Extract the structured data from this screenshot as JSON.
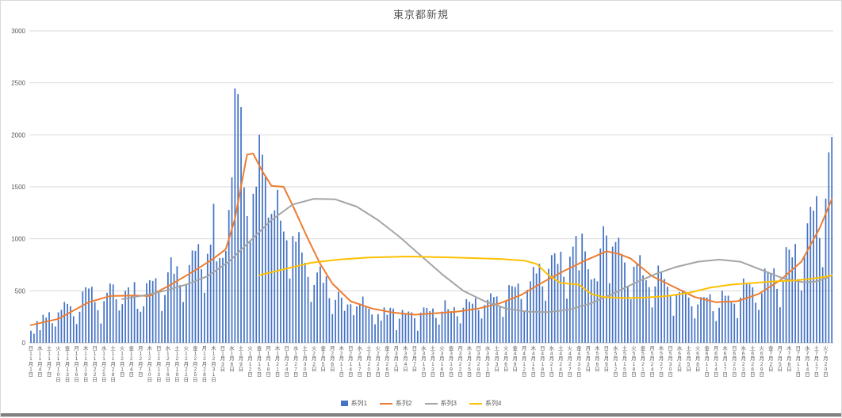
{
  "colors": {
    "series1": "#4472C4",
    "series2": "#ED7D31",
    "series3": "#A5A5A5",
    "series4": "#FFC000",
    "gridline": "#D9D9D9",
    "axis_line": "#BFBFBF",
    "axis_text": "#595959",
    "title_text": "#595959",
    "border": "#D9D9D9"
  },
  "chart_data": {
    "type": "combo",
    "title": "東京都新規",
    "legend_position": "bottom",
    "grid": true,
    "y_axis": {
      "min": 0,
      "max": 3000,
      "tick_step": 500
    },
    "x_axis": {
      "start_date": "2020-11-01",
      "end_date": "2021-07-22",
      "tick_interval_days": 3,
      "weekday_chars": [
        "日",
        "月",
        "火",
        "水",
        "木",
        "金",
        "土"
      ],
      "month_suffix": "月",
      "day_suffix": "日"
    },
    "series": [
      {
        "name": "系列1",
        "type": "bar",
        "color": "#4472C4",
        "values": [
          116,
          87,
          209,
          122,
          269,
          242,
          294,
          189,
          157,
          293,
          317,
          393,
          374,
          352,
          255,
          180,
          298,
          493,
          534,
          522,
          539,
          391,
          314,
          186,
          401,
          481,
          570,
          561,
          418,
          311,
          372,
          500,
          533,
          449,
          584,
          327,
          299,
          352,
          572,
          602,
          595,
          621,
          480,
          305,
          460,
          678,
          822,
          664,
          736,
          556,
          392,
          563,
          748,
          888,
          884,
          949,
          708,
          481,
          856,
          944,
          1337,
          783,
          814,
          816,
          884,
          1278,
          1591,
          2447,
          2392,
          2268,
          1494,
          1219,
          970,
          1433,
          1502,
          2001,
          1809,
          1592,
          1204,
          1240,
          1274,
          1471,
          1175,
          1070,
          986,
          618,
          1026,
          973,
          1064,
          868,
          769,
          633,
          393,
          556,
          676,
          734,
          577,
          639,
          429,
          276,
          412,
          491,
          434,
          307,
          369,
          371,
          266,
          350,
          378,
          445,
          353,
          327,
          272,
          178,
          275,
          213,
          340,
          270,
          337,
          329,
          121,
          232,
          316,
          279,
          301,
          293,
          237,
          116,
          290,
          340,
          335,
          304,
          330,
          239,
          175,
          300,
          409,
          323,
          303,
          342,
          256,
          187,
          337,
          420,
          394,
          376,
          430,
          313,
          234,
          364,
          414,
          475,
          440,
          446,
          355,
          249,
          399,
          555,
          545,
          537,
          570,
          421,
          306,
          510,
          591,
          729,
          667,
          759,
          543,
          405,
          711,
          843,
          861,
          759,
          876,
          635,
          425,
          828,
          925,
          1027,
          698,
          1050,
          879,
          708,
          609,
          621,
          591,
          907,
          1121,
          1032,
          573,
          925,
          969,
          1010,
          854,
          772,
          542,
          419,
          732,
          766,
          843,
          649,
          602,
          535,
          340,
          542,
          743,
          684,
          614,
          539,
          448,
          260,
          471,
          487,
          508,
          472,
          436,
          351,
          235,
          369,
          440,
          439,
          435,
          467,
          304,
          209,
          337,
          501,
          452,
          453,
          388,
          376,
          236,
          435,
          619,
          570,
          562,
          534,
          386,
          317,
          476,
          714,
          673,
          660,
          716,
          518,
          342,
          593,
          920,
          896,
          822,
          950,
          614,
          502,
          830,
          1149,
          1308,
          1271,
          1410,
          1008,
          727,
          1387,
          1832,
          1979
        ]
      },
      {
        "name": "系列2",
        "type": "line",
        "color": "#ED7D31",
        "points": [
          [
            "2020-11-01",
            170
          ],
          [
            "2020-11-10",
            230
          ],
          [
            "2020-11-20",
            390
          ],
          [
            "2020-11-27",
            450
          ],
          [
            "2020-12-05",
            455
          ],
          [
            "2020-12-10",
            450
          ],
          [
            "2020-12-17",
            560
          ],
          [
            "2020-12-24",
            680
          ],
          [
            "2020-12-31",
            810
          ],
          [
            "2021-01-04",
            900
          ],
          [
            "2021-01-07",
            1190
          ],
          [
            "2021-01-11",
            1810
          ],
          [
            "2021-01-13",
            1820
          ],
          [
            "2021-01-16",
            1650
          ],
          [
            "2021-01-19",
            1510
          ],
          [
            "2021-01-23",
            1500
          ],
          [
            "2021-01-26",
            1320
          ],
          [
            "2021-01-31",
            1000
          ],
          [
            "2021-02-04",
            760
          ],
          [
            "2021-02-08",
            570
          ],
          [
            "2021-02-14",
            400
          ],
          [
            "2021-02-21",
            330
          ],
          [
            "2021-02-28",
            290
          ],
          [
            "2021-03-07",
            270
          ],
          [
            "2021-03-14",
            285
          ],
          [
            "2021-03-21",
            300
          ],
          [
            "2021-03-28",
            330
          ],
          [
            "2021-04-04",
            380
          ],
          [
            "2021-04-11",
            460
          ],
          [
            "2021-04-18",
            580
          ],
          [
            "2021-04-25",
            690
          ],
          [
            "2021-05-02",
            790
          ],
          [
            "2021-05-09",
            880
          ],
          [
            "2021-05-13",
            855
          ],
          [
            "2021-05-17",
            810
          ],
          [
            "2021-05-24",
            640
          ],
          [
            "2021-05-31",
            540
          ],
          [
            "2021-06-07",
            440
          ],
          [
            "2021-06-14",
            390
          ],
          [
            "2021-06-21",
            400
          ],
          [
            "2021-06-28",
            470
          ],
          [
            "2021-07-05",
            600
          ],
          [
            "2021-07-12",
            780
          ],
          [
            "2021-07-18",
            1100
          ],
          [
            "2021-07-22",
            1380
          ]
        ]
      },
      {
        "name": "系列3",
        "type": "line",
        "color": "#A5A5A5",
        "points": [
          [
            "2020-12-01",
            420
          ],
          [
            "2020-12-08",
            455
          ],
          [
            "2020-12-15",
            500
          ],
          [
            "2020-12-22",
            560
          ],
          [
            "2020-12-29",
            640
          ],
          [
            "2021-01-05",
            780
          ],
          [
            "2021-01-12",
            980
          ],
          [
            "2021-01-19",
            1180
          ],
          [
            "2021-01-26",
            1330
          ],
          [
            "2021-02-02",
            1385
          ],
          [
            "2021-02-09",
            1380
          ],
          [
            "2021-02-16",
            1310
          ],
          [
            "2021-02-23",
            1180
          ],
          [
            "2021-03-02",
            1020
          ],
          [
            "2021-03-09",
            840
          ],
          [
            "2021-03-16",
            660
          ],
          [
            "2021-03-23",
            500
          ],
          [
            "2021-03-30",
            400
          ],
          [
            "2021-04-06",
            330
          ],
          [
            "2021-04-13",
            300
          ],
          [
            "2021-04-20",
            295
          ],
          [
            "2021-04-27",
            320
          ],
          [
            "2021-05-04",
            380
          ],
          [
            "2021-05-11",
            470
          ],
          [
            "2021-05-18",
            570
          ],
          [
            "2021-05-25",
            660
          ],
          [
            "2021-06-01",
            730
          ],
          [
            "2021-06-08",
            780
          ],
          [
            "2021-06-15",
            800
          ],
          [
            "2021-06-22",
            780
          ],
          [
            "2021-06-29",
            700
          ],
          [
            "2021-07-06",
            620
          ],
          [
            "2021-07-13",
            580
          ],
          [
            "2021-07-17",
            590
          ],
          [
            "2021-07-20",
            620
          ],
          [
            "2021-07-22",
            650
          ]
        ]
      },
      {
        "name": "系列4",
        "type": "line",
        "color": "#FFC000",
        "points": [
          [
            "2021-01-15",
            650
          ],
          [
            "2021-01-22",
            700
          ],
          [
            "2021-02-01",
            770
          ],
          [
            "2021-02-10",
            800
          ],
          [
            "2021-02-20",
            820
          ],
          [
            "2021-03-05",
            830
          ],
          [
            "2021-03-20",
            820
          ],
          [
            "2021-04-05",
            805
          ],
          [
            "2021-04-12",
            790
          ],
          [
            "2021-04-16",
            760
          ],
          [
            "2021-04-20",
            650
          ],
          [
            "2021-04-24",
            575
          ],
          [
            "2021-04-30",
            560
          ],
          [
            "2021-05-04",
            470
          ],
          [
            "2021-05-08",
            440
          ],
          [
            "2021-05-15",
            430
          ],
          [
            "2021-05-22",
            435
          ],
          [
            "2021-05-29",
            450
          ],
          [
            "2021-06-05",
            480
          ],
          [
            "2021-06-12",
            530
          ],
          [
            "2021-06-19",
            560
          ],
          [
            "2021-06-26",
            575
          ],
          [
            "2021-07-03",
            590
          ],
          [
            "2021-07-10",
            600
          ],
          [
            "2021-07-15",
            615
          ],
          [
            "2021-07-20",
            635
          ],
          [
            "2021-07-22",
            650
          ]
        ]
      }
    ]
  }
}
